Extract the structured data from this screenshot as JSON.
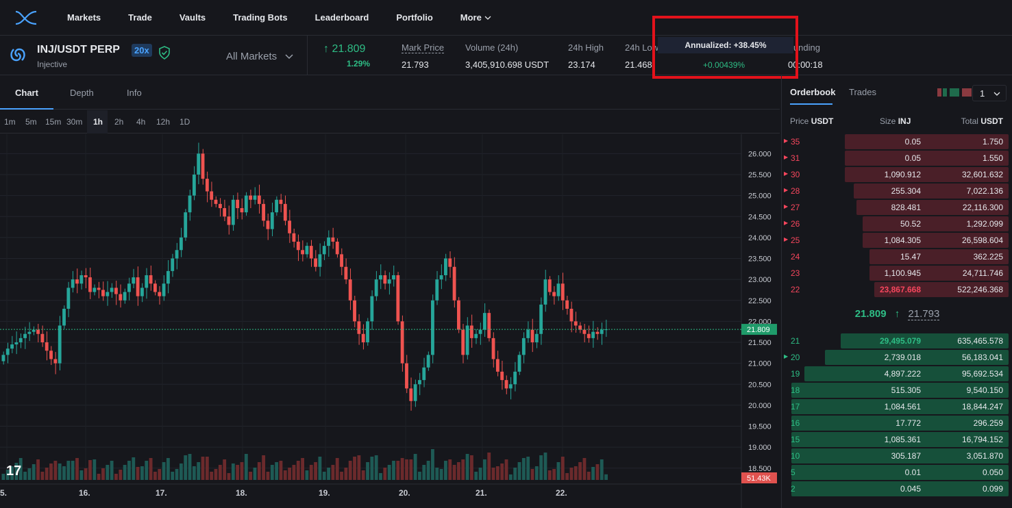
{
  "nav": {
    "items": [
      "Markets",
      "Trade",
      "Vaults",
      "Trading Bots",
      "Leaderboard",
      "Portfolio",
      "More"
    ]
  },
  "market": {
    "symbol": "INJ/USDT PERP",
    "name": "Injective",
    "leverage": "20x",
    "all_markets": "All Markets",
    "last_price": "21.809",
    "change": "1.29%",
    "stats": [
      {
        "label": "Mark Price",
        "value": "21.793"
      },
      {
        "label": "Volume (24h)",
        "value": "3,405,910.698 USDT"
      },
      {
        "label": "24h High",
        "value": "23.174"
      },
      {
        "label": "24h Low",
        "value": "21.468"
      },
      {
        "label": "Funding",
        "value": "00:00:18"
      }
    ],
    "tooltip": "Annualized: +38.45%",
    "funding_rate": "+0.00439%"
  },
  "chart_tabs": [
    "Chart",
    "Depth",
    "Info"
  ],
  "timeframes": [
    "1m",
    "5m",
    "15m",
    "30m",
    "1h",
    "2h",
    "4h",
    "12h",
    "1D"
  ],
  "orderbook": {
    "tabs": [
      "Orderbook",
      "Trades"
    ],
    "grouping": "1",
    "header": {
      "price": "Price",
      "price_unit": "USDT",
      "size": "Size",
      "size_unit": "INJ",
      "total": "Total",
      "total_unit": "USDT"
    },
    "asks": [
      {
        "price": "35",
        "size": "0.05",
        "total": "1.750",
        "marker": true,
        "depth": 0.73
      },
      {
        "price": "31",
        "size": "0.05",
        "total": "1.550",
        "marker": true,
        "depth": 0.73
      },
      {
        "price": "30",
        "size": "1,090.912",
        "total": "32,601.632",
        "marker": true,
        "depth": 0.73
      },
      {
        "price": "28",
        "size": "255.304",
        "total": "7,022.136",
        "marker": true,
        "depth": 0.69
      },
      {
        "price": "27",
        "size": "828.481",
        "total": "22,116.300",
        "marker": true,
        "depth": 0.68
      },
      {
        "price": "26",
        "size": "50.52",
        "total": "1,292.099",
        "marker": true,
        "depth": 0.65
      },
      {
        "price": "25",
        "size": "1,084.305",
        "total": "26,598.604",
        "marker": true,
        "depth": 0.65
      },
      {
        "price": "24",
        "size": "15.47",
        "total": "362.225",
        "marker": false,
        "depth": 0.62
      },
      {
        "price": "23",
        "size": "1,100.945",
        "total": "24,711.746",
        "marker": false,
        "depth": 0.62
      },
      {
        "price": "22",
        "size": "23,867.668",
        "total": "522,246.368",
        "marker": false,
        "depth": 0.6,
        "highlight": true
      }
    ],
    "mid_price": "21.809",
    "mark_price": "21.793",
    "bids": [
      {
        "price": "21",
        "size": "29,495.079",
        "total": "635,465.578",
        "marker": false,
        "depth": 0.75,
        "highlight": true
      },
      {
        "price": "20",
        "size": "2,739.018",
        "total": "56,183.041",
        "marker": true,
        "depth": 0.82
      },
      {
        "price": "19",
        "size": "4,897.222",
        "total": "95,692.534",
        "marker": false,
        "depth": 0.91
      },
      {
        "price": "18",
        "size": "515.305",
        "total": "9,540.150",
        "marker": false,
        "depth": 0.97
      },
      {
        "price": "17",
        "size": "1,084.561",
        "total": "18,844.247",
        "marker": false,
        "depth": 0.97
      },
      {
        "price": "16",
        "size": "17.772",
        "total": "296.259",
        "marker": false,
        "depth": 0.97
      },
      {
        "price": "15",
        "size": "1,085.361",
        "total": "16,794.152",
        "marker": false,
        "depth": 0.97
      },
      {
        "price": "10",
        "size": "305.187",
        "total": "3,051.870",
        "marker": false,
        "depth": 0.97
      },
      {
        "price": "5",
        "size": "0.01",
        "total": "0.050",
        "marker": false,
        "depth": 0.97
      },
      {
        "price": "2",
        "size": "0.045",
        "total": "0.099",
        "marker": false,
        "depth": 0.97
      }
    ]
  },
  "chart_data": {
    "type": "candlestick",
    "y_ticks": [
      "26.000",
      "25.500",
      "25.000",
      "24.500",
      "24.000",
      "23.500",
      "23.000",
      "22.500",
      "22.000",
      "21.500",
      "21.000",
      "20.500",
      "20.000",
      "19.500",
      "19.000",
      "18.500"
    ],
    "x_ticks": [
      "5.",
      "16.",
      "17.",
      "18.",
      "19.",
      "20.",
      "21.",
      "22."
    ],
    "last_price_label": "21.809",
    "volume_label": "51.43K",
    "ylim": [
      18.3,
      26.3
    ],
    "closes": [
      21.2,
      21.35,
      21.45,
      21.5,
      21.6,
      21.7,
      21.75,
      21.8,
      21.7,
      21.5,
      21.3,
      21.1,
      21.0,
      21.9,
      22.3,
      22.8,
      23.0,
      22.9,
      23.1,
      23.05,
      22.7,
      22.8,
      22.75,
      22.6,
      22.7,
      22.8,
      22.65,
      22.5,
      22.7,
      22.9,
      23.05,
      22.6,
      22.8,
      23.1,
      22.9,
      22.7,
      22.6,
      22.9,
      23.2,
      23.5,
      23.7,
      24.0,
      24.6,
      25.0,
      25.5,
      26.0,
      25.4,
      25.1,
      24.9,
      24.8,
      24.7,
      24.5,
      24.3,
      24.9,
      24.7,
      24.6,
      25.0,
      24.9,
      25.0,
      24.8,
      24.4,
      24.2,
      24.6,
      24.9,
      24.8,
      24.4,
      24.1,
      23.9,
      23.7,
      23.6,
      23.8,
      23.5,
      23.3,
      23.6,
      23.8,
      24.0,
      23.9,
      23.6,
      23.3,
      23.0,
      22.5,
      22.0,
      21.7,
      21.5,
      22.0,
      22.6,
      23.0,
      23.1,
      22.9,
      23.0,
      23.1,
      22.0,
      21.0,
      20.4,
      20.1,
      20.5,
      20.6,
      20.9,
      21.2,
      22.5,
      23.0,
      23.1,
      23.5,
      23.3,
      22.5,
      21.8,
      21.2,
      21.9,
      21.6,
      21.7,
      21.8,
      22.2,
      21.6,
      21.1,
      20.8,
      20.6,
      20.4,
      20.5,
      20.8,
      21.2,
      21.6,
      21.8,
      21.5,
      21.7,
      22.4,
      23.0,
      22.7,
      22.6,
      22.9,
      22.5,
      22.3,
      22.0,
      21.9,
      21.8,
      21.7,
      21.6,
      21.75,
      21.7,
      21.8,
      21.809
    ]
  }
}
